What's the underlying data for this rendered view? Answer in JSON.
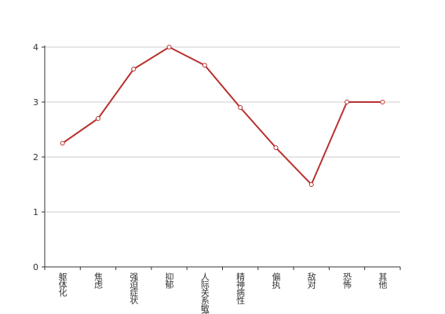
{
  "chart_data": {
    "type": "line",
    "categories": [
      "躯体化",
      "焦虑",
      "强迫症状",
      "抑郁",
      "人际关系敏感",
      "精神病性",
      "偏执",
      "敌对",
      "恐怖",
      "其他"
    ],
    "values": [
      2.25,
      2.7,
      3.6,
      4.0,
      3.67,
      2.9,
      2.17,
      1.5,
      3.0,
      3.0
    ],
    "color": "#b8312f",
    "ylim": [
      0,
      4
    ],
    "yticks": [
      0,
      1,
      2,
      3,
      4
    ],
    "grid": true
  }
}
